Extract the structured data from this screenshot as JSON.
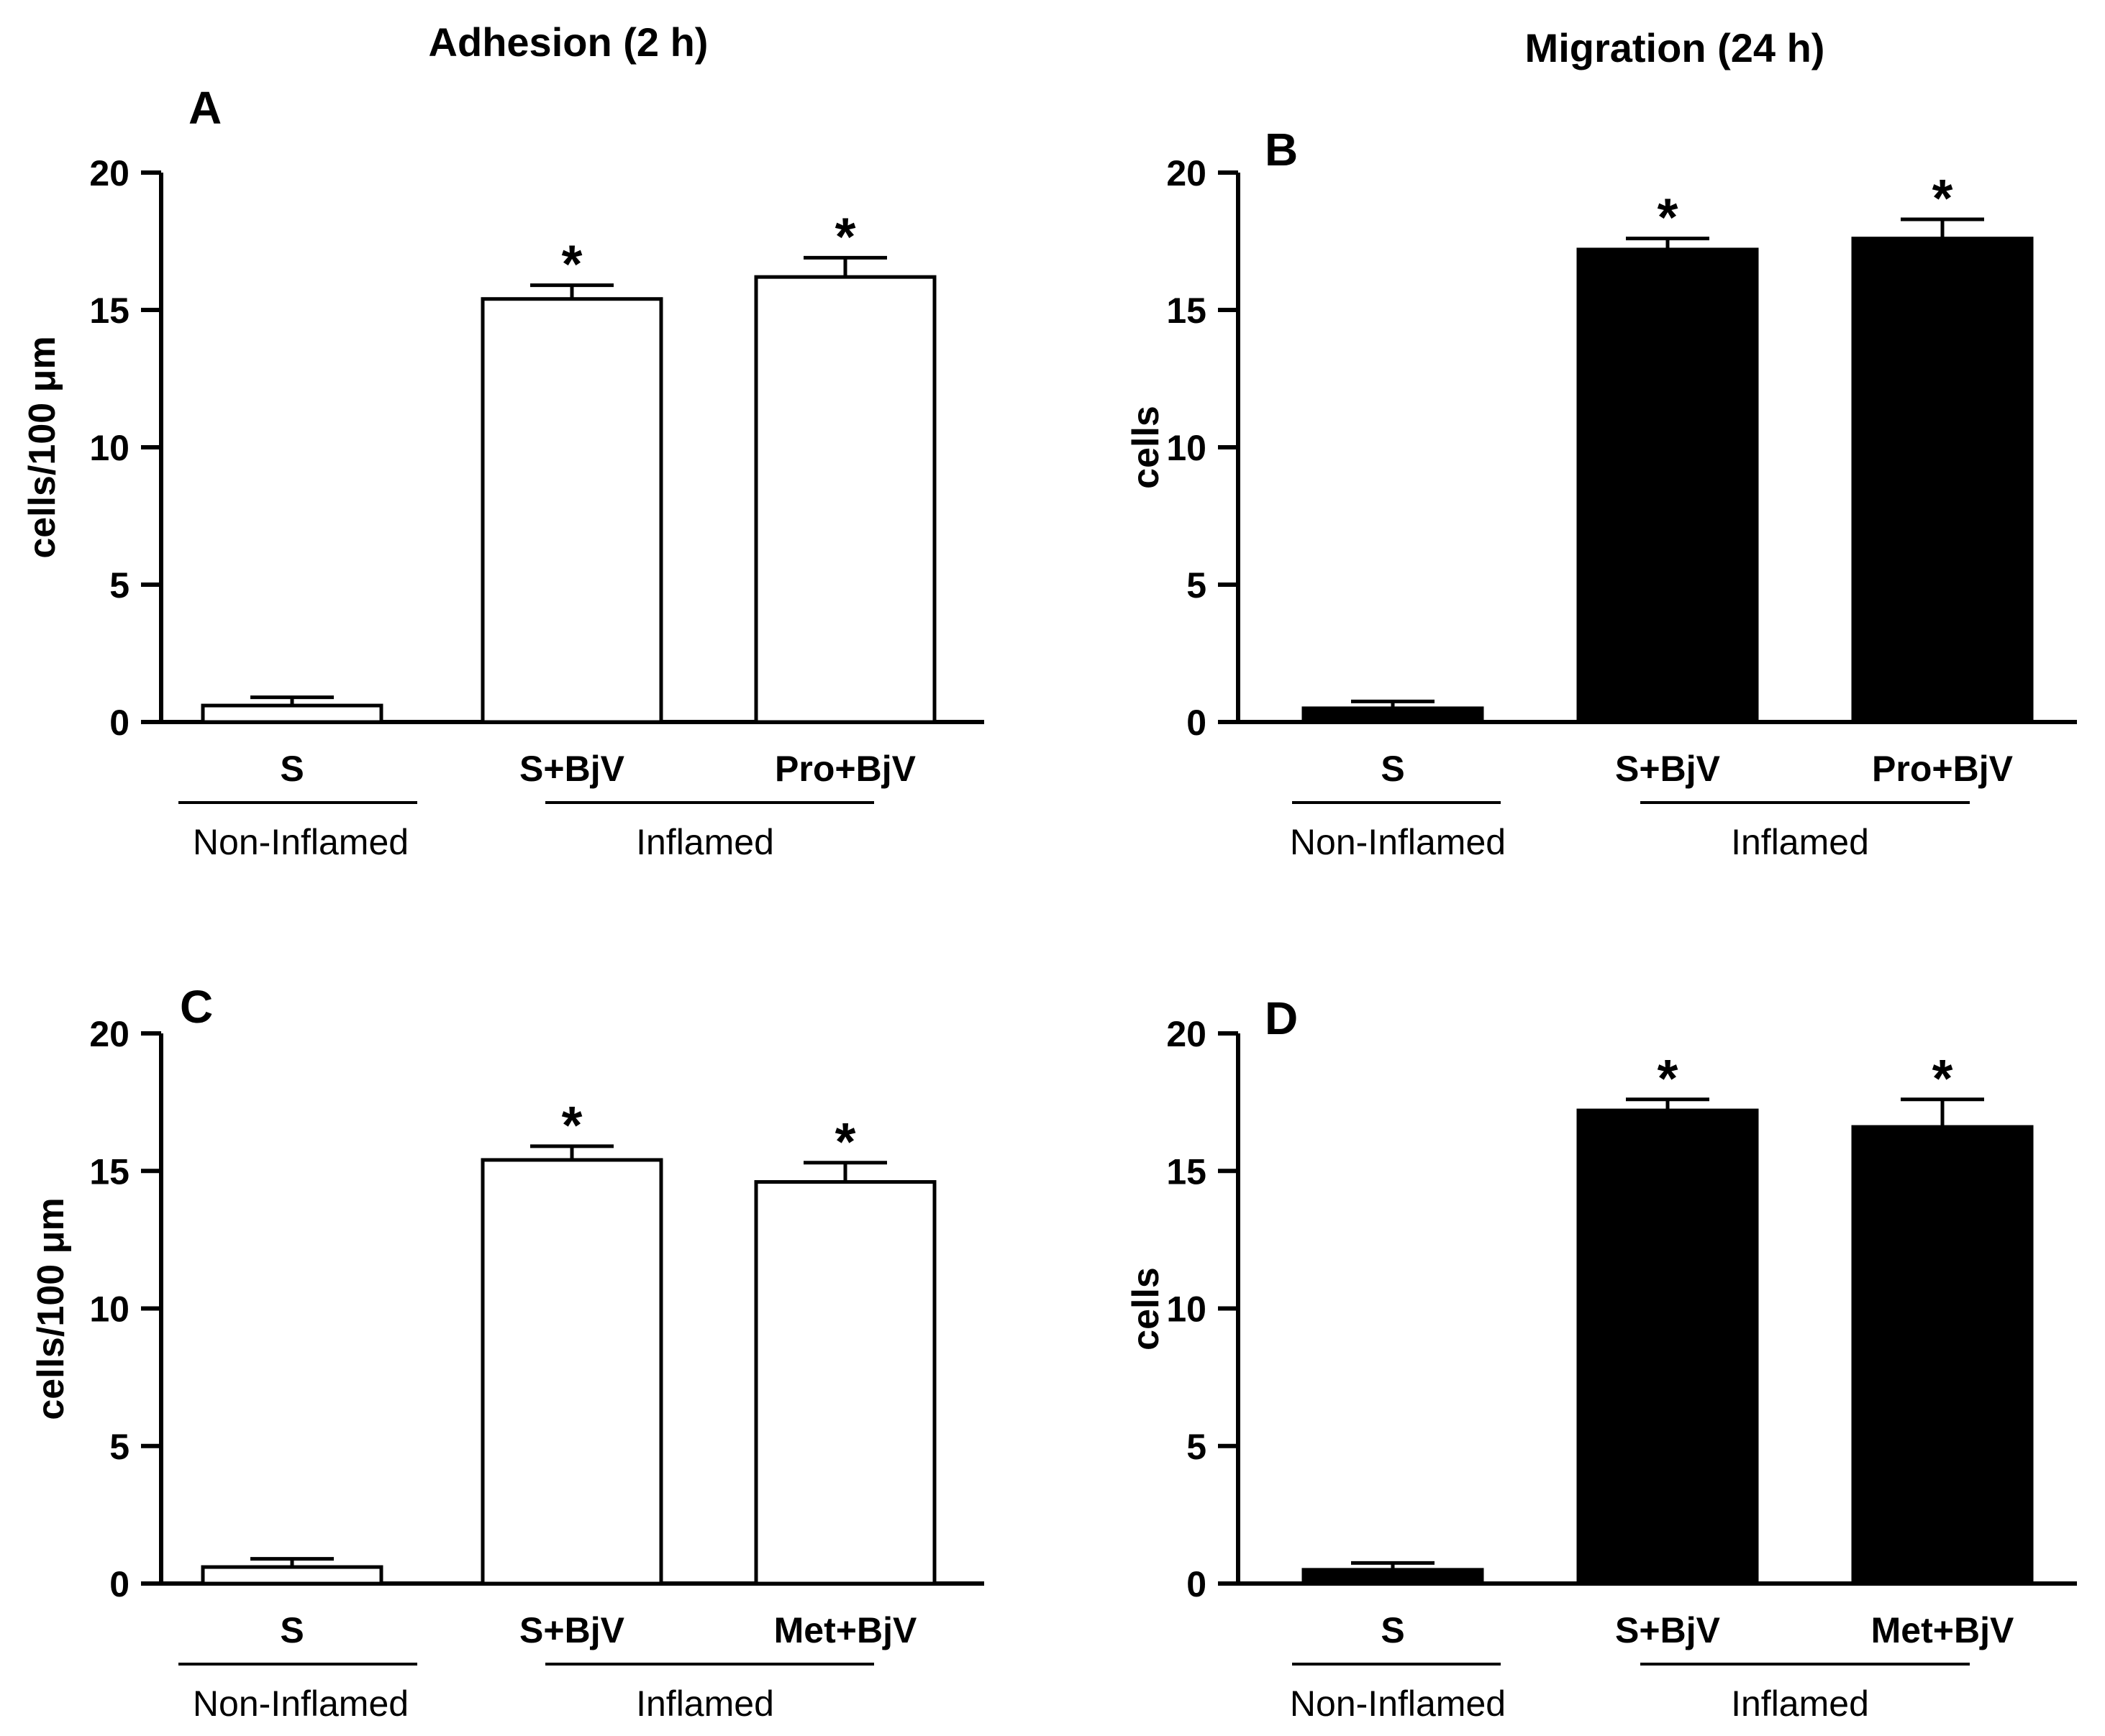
{
  "column_titles": [
    "Adhesion (2 h)",
    "Migration (24 h)"
  ],
  "chart_data": [
    {
      "panel": "A",
      "type": "bar",
      "title": "Adhesion (2 h)",
      "ylabel": "cells/100 μm",
      "xlabel": "",
      "ylim": [
        0,
        20
      ],
      "yticks": [
        0,
        5,
        10,
        15,
        20
      ],
      "categories": [
        "S",
        "S+BjV",
        "Pro+BjV"
      ],
      "values": [
        0.6,
        15.4,
        16.2
      ],
      "errors": [
        0.3,
        0.5,
        0.7
      ],
      "significance": [
        "",
        "*",
        "*"
      ],
      "bar_fill": "#ffffff",
      "groups": [
        {
          "label": "Non-Inflamed",
          "categories": [
            "S"
          ]
        },
        {
          "label": "Inflamed",
          "categories": [
            "S+BjV",
            "Pro+BjV"
          ]
        }
      ]
    },
    {
      "panel": "B",
      "type": "bar",
      "title": "Migration (24 h)",
      "ylabel": "cells",
      "xlabel": "",
      "ylim": [
        0,
        20
      ],
      "yticks": [
        0,
        5,
        10,
        15,
        20
      ],
      "categories": [
        "S",
        "S+BjV",
        "Pro+BjV"
      ],
      "values": [
        0.5,
        17.2,
        17.6
      ],
      "errors": [
        0.25,
        0.4,
        0.7
      ],
      "significance": [
        "",
        "*",
        "*"
      ],
      "bar_fill": "#000000",
      "groups": [
        {
          "label": "Non-Inflamed",
          "categories": [
            "S"
          ]
        },
        {
          "label": "Inflamed",
          "categories": [
            "S+BjV",
            "Pro+BjV"
          ]
        }
      ]
    },
    {
      "panel": "C",
      "type": "bar",
      "title": "",
      "ylabel": "cells/100 μm",
      "xlabel": "",
      "ylim": [
        0,
        20
      ],
      "yticks": [
        0,
        5,
        10,
        15,
        20
      ],
      "categories": [
        "S",
        "S+BjV",
        "Met+BjV"
      ],
      "values": [
        0.6,
        15.4,
        14.6
      ],
      "errors": [
        0.3,
        0.5,
        0.7
      ],
      "significance": [
        "",
        "*",
        "*"
      ],
      "bar_fill": "#ffffff",
      "groups": [
        {
          "label": "Non-Inflamed",
          "categories": [
            "S"
          ]
        },
        {
          "label": "Inflamed",
          "categories": [
            "S+BjV",
            "Met+BjV"
          ]
        }
      ]
    },
    {
      "panel": "D",
      "type": "bar",
      "title": "",
      "ylabel": "cells",
      "xlabel": "",
      "ylim": [
        0,
        20
      ],
      "yticks": [
        0,
        5,
        10,
        15,
        20
      ],
      "categories": [
        "S",
        "S+BjV",
        "Met+BjV"
      ],
      "values": [
        0.5,
        17.2,
        16.6
      ],
      "errors": [
        0.25,
        0.4,
        1.0
      ],
      "significance": [
        "",
        "*",
        "*"
      ],
      "bar_fill": "#000000",
      "groups": [
        {
          "label": "Non-Inflamed",
          "categories": [
            "S"
          ]
        },
        {
          "label": "Inflamed",
          "categories": [
            "S+BjV",
            "Met+BjV"
          ]
        }
      ]
    }
  ]
}
